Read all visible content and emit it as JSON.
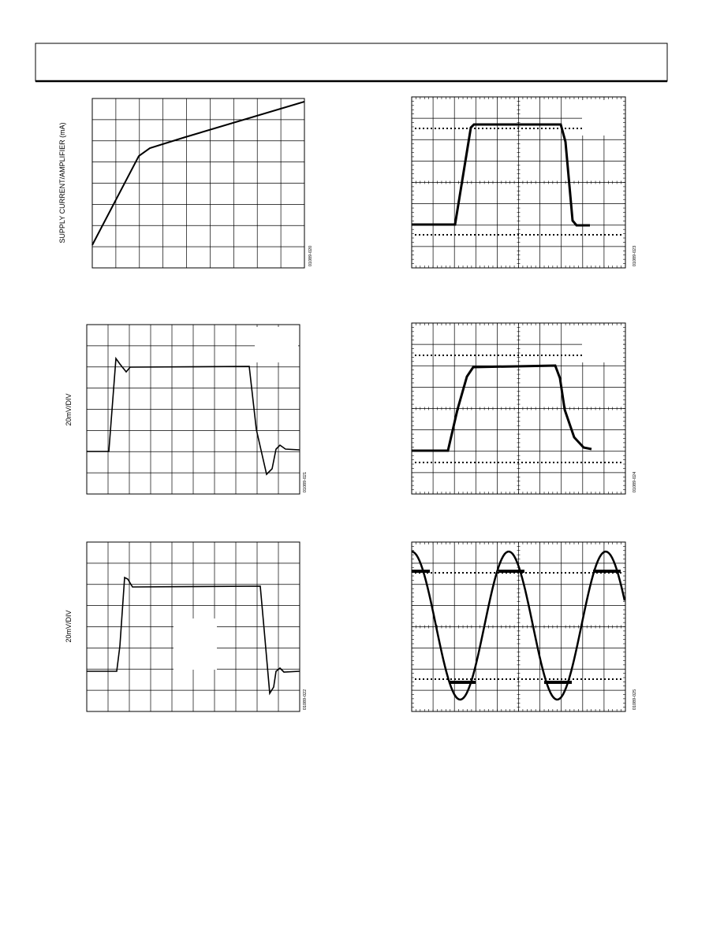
{
  "figures": [
    {
      "y_label": "SUPPLY CURRENT/AMPLIFIER (mA)",
      "code": "01089-020"
    },
    {
      "code": "01089-023"
    },
    {
      "y_label": "20mV/DIV",
      "code": "01089-021"
    },
    {
      "code": "01089-024"
    },
    {
      "y_label": "20mV/DIV",
      "code": "01089-022"
    },
    {
      "code": "01089-025"
    }
  ]
}
